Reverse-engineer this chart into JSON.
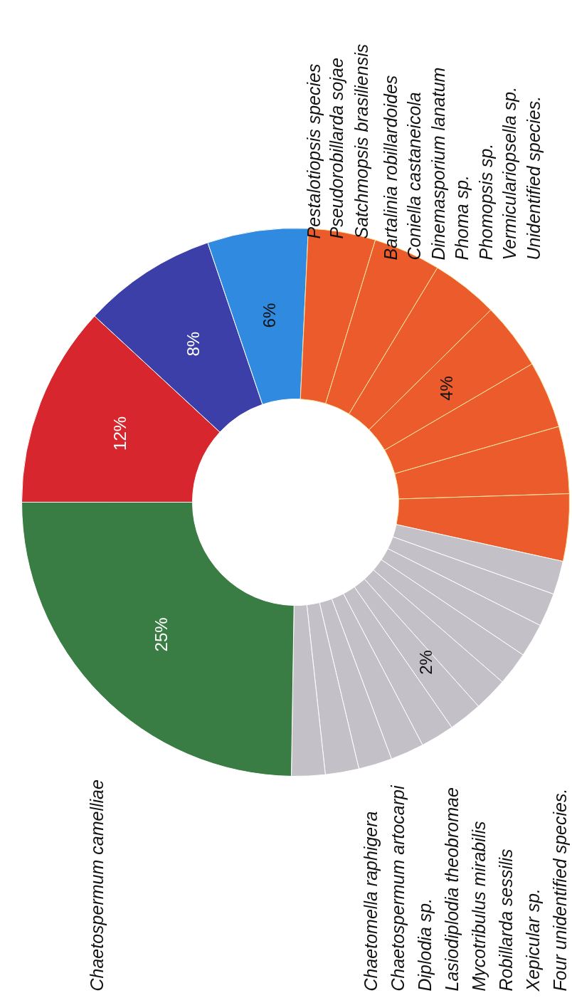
{
  "chart_data": {
    "type": "donut",
    "categories": [
      null,
      null,
      null,
      null,
      null,
      null,
      null,
      null,
      null,
      null,
      null,
      null,
      null,
      null,
      null,
      null,
      null,
      null,
      null,
      null,
      null,
      null
    ],
    "values": [
      12,
      8,
      6,
      4,
      4,
      4,
      4,
      4,
      4,
      4,
      2,
      2,
      2,
      2,
      2,
      2,
      2,
      2,
      2,
      2,
      2,
      25
    ],
    "value_labels": [
      "12%",
      "8%",
      "6%",
      null,
      null,
      null,
      null,
      null,
      null,
      null,
      null,
      null,
      null,
      null,
      null,
      null,
      null,
      null,
      null,
      null,
      null,
      "25%"
    ],
    "colors": [
      "#d8262e",
      "#3c3fa8",
      "#2f8ae0",
      "#ec5b2c",
      "#ec5b2c",
      "#ec5b2c",
      "#ec5b2c",
      "#ec5b2c",
      "#ec5b2c",
      "#ec5b2c",
      "#c4c0c8",
      "#c4c0c8",
      "#c4c0c8",
      "#c4c0c8",
      "#c4c0c8",
      "#c4c0c8",
      "#c4c0c8",
      "#c4c0c8",
      "#c4c0c8",
      "#c4c0c8",
      "#c4c0c8",
      "#3a7d44"
    ],
    "annotations": [
      "Pestalotiopsis species",
      "Pseudorobillarda sojae",
      "Satchmopsis brasiliensis",
      "Bartalinia robillardoides",
      "Coniella castaneicola",
      "Dinemasporium lanatum",
      "Phoma sp.",
      "Phomopsis sp.",
      "Vermiculariopsella sp.",
      "Unidentified species.",
      "Chaetospermum camelliae",
      "Chaetomella raphigera",
      "Chaetospermum artocarpi",
      "Diplodia sp.",
      "Lasiodiplodia theobromae",
      "Mycotribulus mirabilis",
      "Robillarda sessilis",
      "Xepicular sp.",
      "Four unidentified species.",
      "4%",
      "2%"
    ]
  }
}
